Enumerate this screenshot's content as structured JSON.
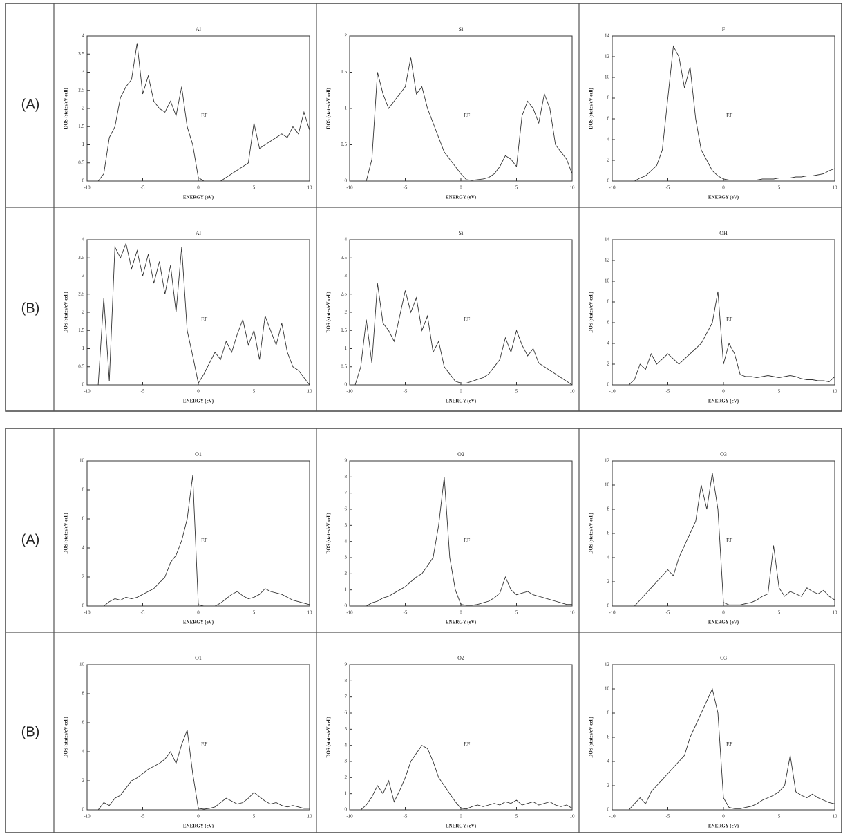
{
  "row_labels": [
    "(A)",
    "(B)",
    "(A)",
    "(B)"
  ],
  "chart_data": [
    {
      "type": "line",
      "title": "Al",
      "xlabel": "ENERGY (eV)",
      "ylabel": "DOS (states/eV cell)",
      "annotation": "EF",
      "x": [
        -10,
        -9.5,
        -9,
        -8.5,
        -8,
        -7.5,
        -7,
        -6.5,
        -6,
        -5.5,
        -5,
        -4.5,
        -4,
        -3.5,
        -3,
        -2.5,
        -2,
        -1.5,
        -1,
        -0.5,
        0,
        0.5,
        1,
        1.5,
        2,
        2.5,
        3,
        3.5,
        4,
        4.5,
        5,
        5.5,
        6,
        6.5,
        7,
        7.5,
        8,
        8.5,
        9,
        9.5,
        10
      ],
      "values": [
        0,
        0,
        0,
        0.2,
        1.2,
        1.5,
        2.3,
        2.6,
        2.8,
        3.8,
        2.4,
        2.9,
        2.2,
        2.0,
        1.9,
        2.2,
        1.8,
        2.6,
        1.5,
        1.0,
        0.1,
        0,
        0,
        0,
        0,
        0.1,
        0.2,
        0.3,
        0.4,
        0.5,
        1.6,
        0.9,
        1.0,
        1.1,
        1.2,
        1.3,
        1.2,
        1.5,
        1.3,
        1.9,
        1.4
      ],
      "color": "#333333",
      "xlim": [
        -10,
        10
      ],
      "xticks": [
        -10,
        -5,
        0,
        5,
        10
      ],
      "ylim": [
        0,
        4
      ],
      "yticks": [
        0,
        0.5,
        1,
        1.5,
        2,
        2.5,
        3,
        3.5,
        4
      ]
    },
    {
      "type": "line",
      "title": "Si",
      "xlabel": "ENERGY (eV)",
      "ylabel": "DOS (states/eV cell)",
      "annotation": "EF",
      "x": [
        -10,
        -9.5,
        -9,
        -8.5,
        -8,
        -7.5,
        -7,
        -6.5,
        -6,
        -5.5,
        -5,
        -4.5,
        -4,
        -3.5,
        -3,
        -2.5,
        -2,
        -1.5,
        -1,
        -0.5,
        0,
        0.5,
        1,
        1.5,
        2,
        2.5,
        3,
        3.5,
        4,
        4.5,
        5,
        5.5,
        6,
        6.5,
        7,
        7.5,
        8,
        8.5,
        9,
        9.5,
        10
      ],
      "values": [
        0,
        0,
        0,
        0,
        0.3,
        1.5,
        1.2,
        1.0,
        1.1,
        1.2,
        1.3,
        1.7,
        1.2,
        1.3,
        1.0,
        0.8,
        0.6,
        0.4,
        0.3,
        0.2,
        0.1,
        0.02,
        0.01,
        0.02,
        0.03,
        0.05,
        0.1,
        0.2,
        0.35,
        0.3,
        0.2,
        0.9,
        1.1,
        1.0,
        0.8,
        1.2,
        1.0,
        0.5,
        0.4,
        0.3,
        0.1
      ],
      "color": "#333333",
      "xlim": [
        -10,
        10
      ],
      "xticks": [
        -10,
        -5,
        0,
        5,
        10
      ],
      "ylim": [
        0,
        2
      ],
      "yticks": [
        0,
        0.5,
        1,
        1.5,
        2
      ]
    },
    {
      "type": "line",
      "title": "F",
      "xlabel": "ENERGY (eV)",
      "ylabel": "DOS (states/eV cell)",
      "annotation": "EF",
      "x": [
        -10,
        -9.5,
        -9,
        -8.5,
        -8,
        -7.5,
        -7,
        -6.5,
        -6,
        -5.5,
        -5,
        -4.5,
        -4,
        -3.5,
        -3,
        -2.5,
        -2,
        -1.5,
        -1,
        -0.5,
        0,
        0.5,
        1,
        1.5,
        2,
        2.5,
        3,
        3.5,
        4,
        4.5,
        5,
        5.5,
        6,
        6.5,
        7,
        7.5,
        8,
        8.5,
        9,
        9.5,
        10
      ],
      "values": [
        0,
        0,
        0,
        0,
        0,
        0.3,
        0.5,
        1,
        1.5,
        3,
        8,
        13,
        12,
        9,
        11,
        6,
        3,
        2,
        1,
        0.5,
        0.2,
        0.1,
        0.1,
        0.1,
        0.1,
        0.1,
        0.1,
        0.2,
        0.2,
        0.2,
        0.3,
        0.3,
        0.3,
        0.4,
        0.4,
        0.5,
        0.5,
        0.6,
        0.7,
        1.0,
        1.2
      ],
      "color": "#333333",
      "xlim": [
        -10,
        10
      ],
      "xticks": [
        -10,
        -5,
        0,
        5,
        10
      ],
      "ylim": [
        0,
        14
      ],
      "yticks": [
        0,
        2,
        4,
        6,
        8,
        10,
        12,
        14
      ]
    },
    {
      "type": "line",
      "title": "Al",
      "xlabel": "ENERGY (eV)",
      "ylabel": "DOS (states/eV cell)",
      "annotation": "EF",
      "x": [
        -10,
        -9.5,
        -9,
        -8.5,
        -8,
        -7.5,
        -7,
        -6.5,
        -6,
        -5.5,
        -5,
        -4.5,
        -4,
        -3.5,
        -3,
        -2.5,
        -2,
        -1.5,
        -1,
        -0.5,
        0,
        0.5,
        1,
        1.5,
        2,
        2.5,
        3,
        3.5,
        4,
        4.5,
        5,
        5.5,
        6,
        6.5,
        7,
        7.5,
        8,
        8.5,
        9,
        9.5,
        10
      ],
      "values": [
        0,
        0,
        0,
        2.4,
        0.1,
        3.8,
        3.5,
        3.9,
        3.2,
        3.7,
        3.0,
        3.6,
        2.8,
        3.4,
        2.5,
        3.3,
        2.0,
        3.8,
        1.5,
        0.8,
        0.05,
        0.3,
        0.6,
        0.9,
        0.7,
        1.2,
        0.9,
        1.4,
        1.8,
        1.1,
        1.5,
        0.7,
        1.9,
        1.5,
        1.1,
        1.7,
        0.9,
        0.5,
        0.4,
        0.2,
        0
      ],
      "color": "#333333",
      "xlim": [
        -10,
        10
      ],
      "xticks": [
        -10,
        -5,
        0,
        5,
        10
      ],
      "ylim": [
        0,
        4
      ],
      "yticks": [
        0,
        0.5,
        1,
        1.5,
        2,
        2.5,
        3,
        3.5,
        4
      ]
    },
    {
      "type": "line",
      "title": "Si",
      "xlabel": "ENERGY (eV)",
      "ylabel": "DOS (states/eV cell)",
      "annotation": "EF",
      "x": [
        -10,
        -9.5,
        -9,
        -8.5,
        -8,
        -7.5,
        -7,
        -6.5,
        -6,
        -5.5,
        -5,
        -4.5,
        -4,
        -3.5,
        -3,
        -2.5,
        -2,
        -1.5,
        -1,
        -0.5,
        0,
        0.5,
        1,
        1.5,
        2,
        2.5,
        3,
        3.5,
        4,
        4.5,
        5,
        5.5,
        6,
        6.5,
        7,
        7.5,
        8,
        8.5,
        9,
        9.5,
        10
      ],
      "values": [
        0,
        0,
        0.5,
        1.8,
        0.6,
        2.8,
        1.7,
        1.5,
        1.2,
        1.9,
        2.6,
        2.0,
        2.4,
        1.5,
        1.9,
        0.9,
        1.2,
        0.5,
        0.3,
        0.1,
        0.05,
        0.05,
        0.1,
        0.15,
        0.2,
        0.3,
        0.5,
        0.7,
        1.3,
        0.9,
        1.5,
        1.1,
        0.8,
        1.0,
        0.6,
        0.5,
        0.4,
        0.3,
        0.2,
        0.1,
        0
      ],
      "color": "#333333",
      "xlim": [
        -10,
        10
      ],
      "xticks": [
        -10,
        -5,
        0,
        5,
        10
      ],
      "ylim": [
        0,
        4
      ],
      "yticks": [
        0,
        0.5,
        1,
        1.5,
        2,
        2.5,
        3,
        3.5,
        4
      ]
    },
    {
      "type": "line",
      "title": "OH",
      "xlabel": "ENERGY (eV)",
      "ylabel": "DOS (states/eV cell)",
      "annotation": "EF",
      "x": [
        -10,
        -9.5,
        -9,
        -8.5,
        -8,
        -7.5,
        -7,
        -6.5,
        -6,
        -5.5,
        -5,
        -4.5,
        -4,
        -3.5,
        -3,
        -2.5,
        -2,
        -1.5,
        -1,
        -0.5,
        0,
        0.5,
        1,
        1.5,
        2,
        2.5,
        3,
        3.5,
        4,
        4.5,
        5,
        5.5,
        6,
        6.5,
        7,
        7.5,
        8,
        8.5,
        9,
        9.5,
        10
      ],
      "values": [
        0,
        0,
        0,
        0,
        0.5,
        2,
        1.5,
        3,
        2,
        2.5,
        3,
        2.5,
        2,
        2.5,
        3,
        3.5,
        4,
        5,
        6,
        9,
        2,
        4,
        3,
        1,
        0.8,
        0.8,
        0.7,
        0.8,
        0.9,
        0.8,
        0.7,
        0.8,
        0.9,
        0.8,
        0.6,
        0.5,
        0.5,
        0.4,
        0.4,
        0.3,
        0.8
      ],
      "color": "#333333",
      "xlim": [
        -10,
        10
      ],
      "xticks": [
        -10,
        -5,
        0,
        5,
        10
      ],
      "ylim": [
        0,
        14
      ],
      "yticks": [
        0,
        2,
        4,
        6,
        8,
        10,
        12,
        14
      ]
    },
    {
      "type": "line",
      "title": "O1",
      "xlabel": "ENERGY (eV)",
      "ylabel": "DOS (states/eV cell)",
      "annotation": "EF",
      "x": [
        -10,
        -9.5,
        -9,
        -8.5,
        -8,
        -7.5,
        -7,
        -6.5,
        -6,
        -5.5,
        -5,
        -4.5,
        -4,
        -3.5,
        -3,
        -2.5,
        -2,
        -1.5,
        -1,
        -0.5,
        0,
        0.5,
        1,
        1.5,
        2,
        2.5,
        3,
        3.5,
        4,
        4.5,
        5,
        5.5,
        6,
        6.5,
        7,
        7.5,
        8,
        8.5,
        9,
        9.5,
        10
      ],
      "values": [
        0,
        0,
        0,
        0,
        0.3,
        0.5,
        0.4,
        0.6,
        0.5,
        0.6,
        0.8,
        1.0,
        1.2,
        1.6,
        2.0,
        3.0,
        3.5,
        4.5,
        6.0,
        9.0,
        0.1,
        0,
        0,
        0,
        0.2,
        0.5,
        0.8,
        1.0,
        0.7,
        0.5,
        0.6,
        0.8,
        1.2,
        1.0,
        0.9,
        0.8,
        0.6,
        0.4,
        0.3,
        0.2,
        0.1
      ],
      "color": "#333333",
      "xlim": [
        -10,
        10
      ],
      "xticks": [
        -10,
        -5,
        0,
        5,
        10
      ],
      "ylim": [
        0,
        10
      ],
      "yticks": [
        0,
        2,
        4,
        6,
        8,
        10
      ]
    },
    {
      "type": "line",
      "title": "O2",
      "xlabel": "ENERGY (eV)",
      "ylabel": "DOS (states/eV cell)",
      "annotation": "EF",
      "x": [
        -10,
        -9.5,
        -9,
        -8.5,
        -8,
        -7.5,
        -7,
        -6.5,
        -6,
        -5.5,
        -5,
        -4.5,
        -4,
        -3.5,
        -3,
        -2.5,
        -2,
        -1.5,
        -1,
        -0.5,
        0,
        0.5,
        1,
        1.5,
        2,
        2.5,
        3,
        3.5,
        4,
        4.5,
        5,
        5.5,
        6,
        6.5,
        7,
        7.5,
        8,
        8.5,
        9,
        9.5,
        10
      ],
      "values": [
        0,
        0,
        0,
        0,
        0.2,
        0.3,
        0.5,
        0.6,
        0.8,
        1.0,
        1.2,
        1.5,
        1.8,
        2.0,
        2.5,
        3.0,
        5.0,
        8.0,
        3.0,
        1.0,
        0.1,
        0.05,
        0.05,
        0.1,
        0.2,
        0.3,
        0.5,
        0.8,
        1.8,
        1.0,
        0.7,
        0.8,
        0.9,
        0.7,
        0.6,
        0.5,
        0.4,
        0.3,
        0.2,
        0.1,
        0.1
      ],
      "color": "#333333",
      "xlim": [
        -10,
        10
      ],
      "xticks": [
        -10,
        -5,
        0,
        5,
        10
      ],
      "ylim": [
        0,
        9
      ],
      "yticks": [
        0,
        1,
        2,
        3,
        4,
        5,
        6,
        7,
        8,
        9
      ]
    },
    {
      "type": "line",
      "title": "O3",
      "xlabel": "ENERGY (eV)",
      "ylabel": "DOS (states/eV cell)",
      "annotation": "EF",
      "x": [
        -10,
        -9.5,
        -9,
        -8.5,
        -8,
        -7.5,
        -7,
        -6.5,
        -6,
        -5.5,
        -5,
        -4.5,
        -4,
        -3.5,
        -3,
        -2.5,
        -2,
        -1.5,
        -1,
        -0.5,
        0,
        0.5,
        1,
        1.5,
        2,
        2.5,
        3,
        3.5,
        4,
        4.5,
        5,
        5.5,
        6,
        6.5,
        7,
        7.5,
        8,
        8.5,
        9,
        9.5,
        10
      ],
      "values": [
        0,
        0,
        0,
        0,
        0,
        0.5,
        1.0,
        1.5,
        2.0,
        2.5,
        3.0,
        2.5,
        4.0,
        5.0,
        6.0,
        7.0,
        10.0,
        8.0,
        11.0,
        8.0,
        0.3,
        0.1,
        0.1,
        0.1,
        0.2,
        0.3,
        0.5,
        0.8,
        1.0,
        5.0,
        1.5,
        0.8,
        1.2,
        1.0,
        0.8,
        1.5,
        1.2,
        1.0,
        1.3,
        0.8,
        0.5
      ],
      "color": "#333333",
      "xlim": [
        -10,
        10
      ],
      "xticks": [
        -10,
        -5,
        0,
        5,
        10
      ],
      "ylim": [
        0,
        12
      ],
      "yticks": [
        0,
        2,
        4,
        6,
        8,
        10,
        12
      ]
    },
    {
      "type": "line",
      "title": "O1",
      "xlabel": "ENERGY (eV)",
      "ylabel": "DOS (states/eV cell)",
      "annotation": "EF",
      "x": [
        -10,
        -9.5,
        -9,
        -8.5,
        -8,
        -7.5,
        -7,
        -6.5,
        -6,
        -5.5,
        -5,
        -4.5,
        -4,
        -3.5,
        -3,
        -2.5,
        -2,
        -1.5,
        -1,
        -0.5,
        0,
        0.5,
        1,
        1.5,
        2,
        2.5,
        3,
        3.5,
        4,
        4.5,
        5,
        5.5,
        6,
        6.5,
        7,
        7.5,
        8,
        8.5,
        9,
        9.5,
        10
      ],
      "values": [
        0,
        0,
        0,
        0.5,
        0.3,
        0.8,
        1.0,
        1.5,
        2.0,
        2.2,
        2.5,
        2.8,
        3.0,
        3.2,
        3.5,
        4.0,
        3.2,
        4.5,
        5.5,
        2.5,
        0.1,
        0.05,
        0.1,
        0.2,
        0.5,
        0.8,
        0.6,
        0.4,
        0.5,
        0.8,
        1.2,
        0.9,
        0.6,
        0.4,
        0.5,
        0.3,
        0.2,
        0.3,
        0.2,
        0.1,
        0.1
      ],
      "color": "#333333",
      "xlim": [
        -10,
        10
      ],
      "xticks": [
        -10,
        -5,
        0,
        5,
        10
      ],
      "ylim": [
        0,
        10
      ],
      "yticks": [
        0,
        2,
        4,
        6,
        8,
        10
      ]
    },
    {
      "type": "line",
      "title": "O2",
      "xlabel": "ENERGY (eV)",
      "ylabel": "DOS (states/eV cell)",
      "annotation": "EF",
      "x": [
        -10,
        -9.5,
        -9,
        -8.5,
        -8,
        -7.5,
        -7,
        -6.5,
        -6,
        -5.5,
        -5,
        -4.5,
        -4,
        -3.5,
        -3,
        -2.5,
        -2,
        -1.5,
        -1,
        -0.5,
        0,
        0.5,
        1,
        1.5,
        2,
        2.5,
        3,
        3.5,
        4,
        4.5,
        5,
        5.5,
        6,
        6.5,
        7,
        7.5,
        8,
        8.5,
        9,
        9.5,
        10
      ],
      "values": [
        0,
        0,
        0,
        0.3,
        0.8,
        1.5,
        1.0,
        1.8,
        0.5,
        1.2,
        2.0,
        3.0,
        3.5,
        4.0,
        3.8,
        3.0,
        2.0,
        1.5,
        1.0,
        0.5,
        0.1,
        0.05,
        0.2,
        0.3,
        0.2,
        0.3,
        0.4,
        0.3,
        0.5,
        0.4,
        0.6,
        0.3,
        0.4,
        0.5,
        0.3,
        0.4,
        0.5,
        0.3,
        0.2,
        0.3,
        0.1
      ],
      "color": "#333333",
      "xlim": [
        -10,
        10
      ],
      "xticks": [
        -10,
        -5,
        0,
        5,
        10
      ],
      "ylim": [
        0,
        9
      ],
      "yticks": [
        0,
        1,
        2,
        3,
        4,
        5,
        6,
        7,
        8,
        9
      ]
    },
    {
      "type": "line",
      "title": "O3",
      "xlabel": "ENERGY (eV)",
      "ylabel": "DOS (states/eV cell)",
      "annotation": "EF",
      "x": [
        -10,
        -9.5,
        -9,
        -8.5,
        -8,
        -7.5,
        -7,
        -6.5,
        -6,
        -5.5,
        -5,
        -4.5,
        -4,
        -3.5,
        -3,
        -2.5,
        -2,
        -1.5,
        -1,
        -0.5,
        0,
        0.5,
        1,
        1.5,
        2,
        2.5,
        3,
        3.5,
        4,
        4.5,
        5,
        5.5,
        6,
        6.5,
        7,
        7.5,
        8,
        8.5,
        9,
        9.5,
        10
      ],
      "values": [
        0,
        0,
        0,
        0,
        0.5,
        1.0,
        0.5,
        1.5,
        2.0,
        2.5,
        3.0,
        3.5,
        4.0,
        4.5,
        6.0,
        7.0,
        8.0,
        9.0,
        10.0,
        8.0,
        1.0,
        0.2,
        0.1,
        0.1,
        0.2,
        0.3,
        0.5,
        0.8,
        1.0,
        1.2,
        1.5,
        2.0,
        4.5,
        1.5,
        1.2,
        1.0,
        1.3,
        1.0,
        0.8,
        0.6,
        0.5
      ],
      "color": "#333333",
      "xlim": [
        -10,
        10
      ],
      "xticks": [
        -10,
        -5,
        0,
        5,
        10
      ],
      "ylim": [
        0,
        12
      ],
      "yticks": [
        0,
        2,
        4,
        6,
        8,
        10,
        12
      ]
    }
  ]
}
